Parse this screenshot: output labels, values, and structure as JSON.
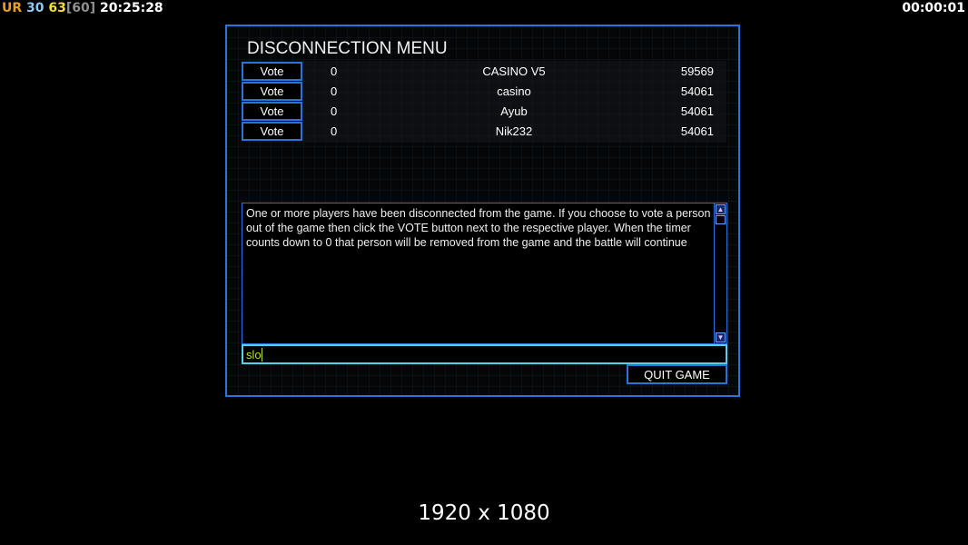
{
  "hud": {
    "left": [
      {
        "text": "UR",
        "color": "#e8a020"
      },
      {
        "text": " 30",
        "color": "#8ec8f0"
      },
      {
        "text": " 63",
        "color": "#f0e030"
      },
      {
        "text": "[60]",
        "color": "#909090"
      },
      {
        "text": " 20:25:28",
        "color": "#ffffff"
      }
    ],
    "timer": "00:00:01"
  },
  "menu": {
    "title": "DISCONNECTION MENU",
    "vote_label": "Vote",
    "players": [
      {
        "score": "0",
        "name": "CASINO V5",
        "number": "59569"
      },
      {
        "score": "0",
        "name": "casino",
        "number": "54061"
      },
      {
        "score": "0",
        "name": "Ayub",
        "number": "54061"
      },
      {
        "score": "0",
        "name": "Nik232",
        "number": "54061"
      }
    ],
    "message": "One or more players have been disconnected from the game. If you choose to vote a person out of the game then click the VOTE button next to the respective player. When the timer counts down to 0 that person will be removed from the game and the battle will continue",
    "chat_value": "slo",
    "quit_label": "QUIT GAME"
  },
  "resolution": "1920 x 1080",
  "colors": {
    "accent": "#2b73d8",
    "input_border": "#5ad0e8",
    "chat_text": "#b8e030"
  }
}
